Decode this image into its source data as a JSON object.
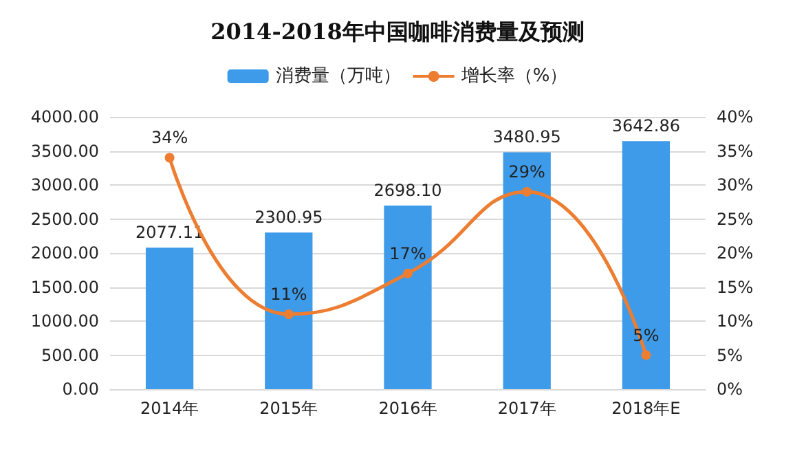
{
  "chart_data": {
    "type": "bar",
    "title": "2014-2018年中国咖啡消费量及预测",
    "categories": [
      "2014年",
      "2015年",
      "2016年",
      "2017年",
      "2018年E"
    ],
    "series": [
      {
        "name": "消费量（万吨）",
        "color": "#3d9be9",
        "values": [
          2077.11,
          2300.95,
          2698.1,
          3480.95,
          3642.86
        ],
        "value_labels": [
          "2077.11",
          "2300.95",
          "2698.10",
          "3480.95",
          "3642.86"
        ]
      },
      {
        "name": "增长率（%）",
        "type": "line",
        "axis": "y2",
        "color": "#ed7d31",
        "marker": "circle",
        "values": [
          34,
          11,
          17,
          29,
          5
        ],
        "value_labels": [
          "34%",
          "11%",
          "17%",
          "29%",
          "5%"
        ]
      }
    ],
    "ylim": [
      0,
      4000
    ],
    "yticks": [
      {
        "value": 0,
        "label": "0.00"
      },
      {
        "value": 500,
        "label": "500.00"
      },
      {
        "value": 1000,
        "label": "1000.00"
      },
      {
        "value": 1500,
        "label": "1500.00"
      },
      {
        "value": 2000,
        "label": "2000.00"
      },
      {
        "value": 2500,
        "label": "2500.00"
      },
      {
        "value": 3000,
        "label": "3000.00"
      },
      {
        "value": 3500,
        "label": "3500.00"
      },
      {
        "value": 4000,
        "label": "4000.00"
      }
    ],
    "y2lim": [
      0,
      40
    ],
    "y2ticks": [
      {
        "value": 0,
        "label": "0%"
      },
      {
        "value": 5,
        "label": "5%"
      },
      {
        "value": 10,
        "label": "10%"
      },
      {
        "value": 15,
        "label": "15%"
      },
      {
        "value": 20,
        "label": "20%"
      },
      {
        "value": 25,
        "label": "25%"
      },
      {
        "value": 30,
        "label": "30%"
      },
      {
        "value": 35,
        "label": "35%"
      },
      {
        "value": 40,
        "label": "40%"
      }
    ],
    "grid": "y",
    "legend": "top"
  }
}
